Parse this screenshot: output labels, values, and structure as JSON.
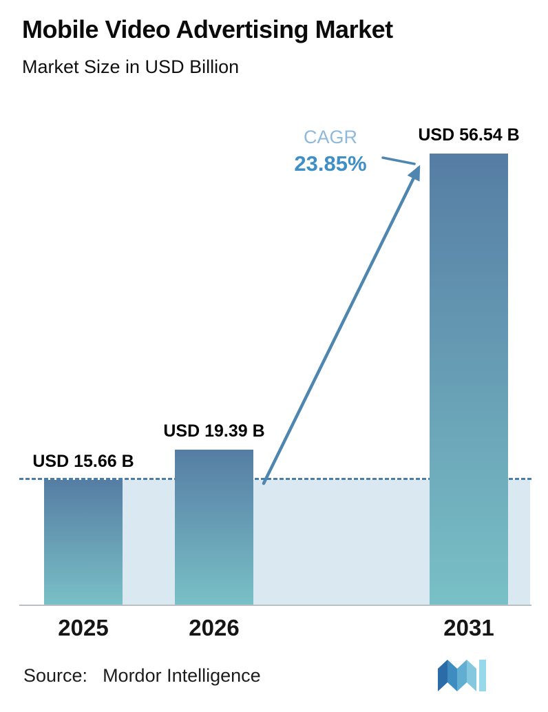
{
  "chart_data": {
    "type": "bar",
    "title": "Mobile Video Advertising Market",
    "subtitle": "Market Size in USD Billion",
    "categories": [
      "2025",
      "2026",
      "2031"
    ],
    "values": [
      15.66,
      19.39,
      56.54
    ],
    "value_labels": [
      "USD 15.66 B",
      "USD 19.39 B",
      "USD 56.54 B"
    ],
    "annotations": {
      "cagr_label": "CAGR",
      "cagr_value": "23.85%"
    },
    "baseline": {
      "style": "dashed",
      "at_value": 15.66
    },
    "legend": "none",
    "grid": "off",
    "colors": {
      "bar_top": "#567da4",
      "bar_bottom": "#79c0c6",
      "band": "#dae8f1",
      "dashed_line": "#4a7ea8",
      "arrow": "#4e86b0",
      "cagr_label": "#8fb9d9",
      "cagr_value": "#3e8fc6"
    }
  },
  "footer": {
    "source_label": "Source:",
    "source_name": "Mordor Intelligence"
  }
}
